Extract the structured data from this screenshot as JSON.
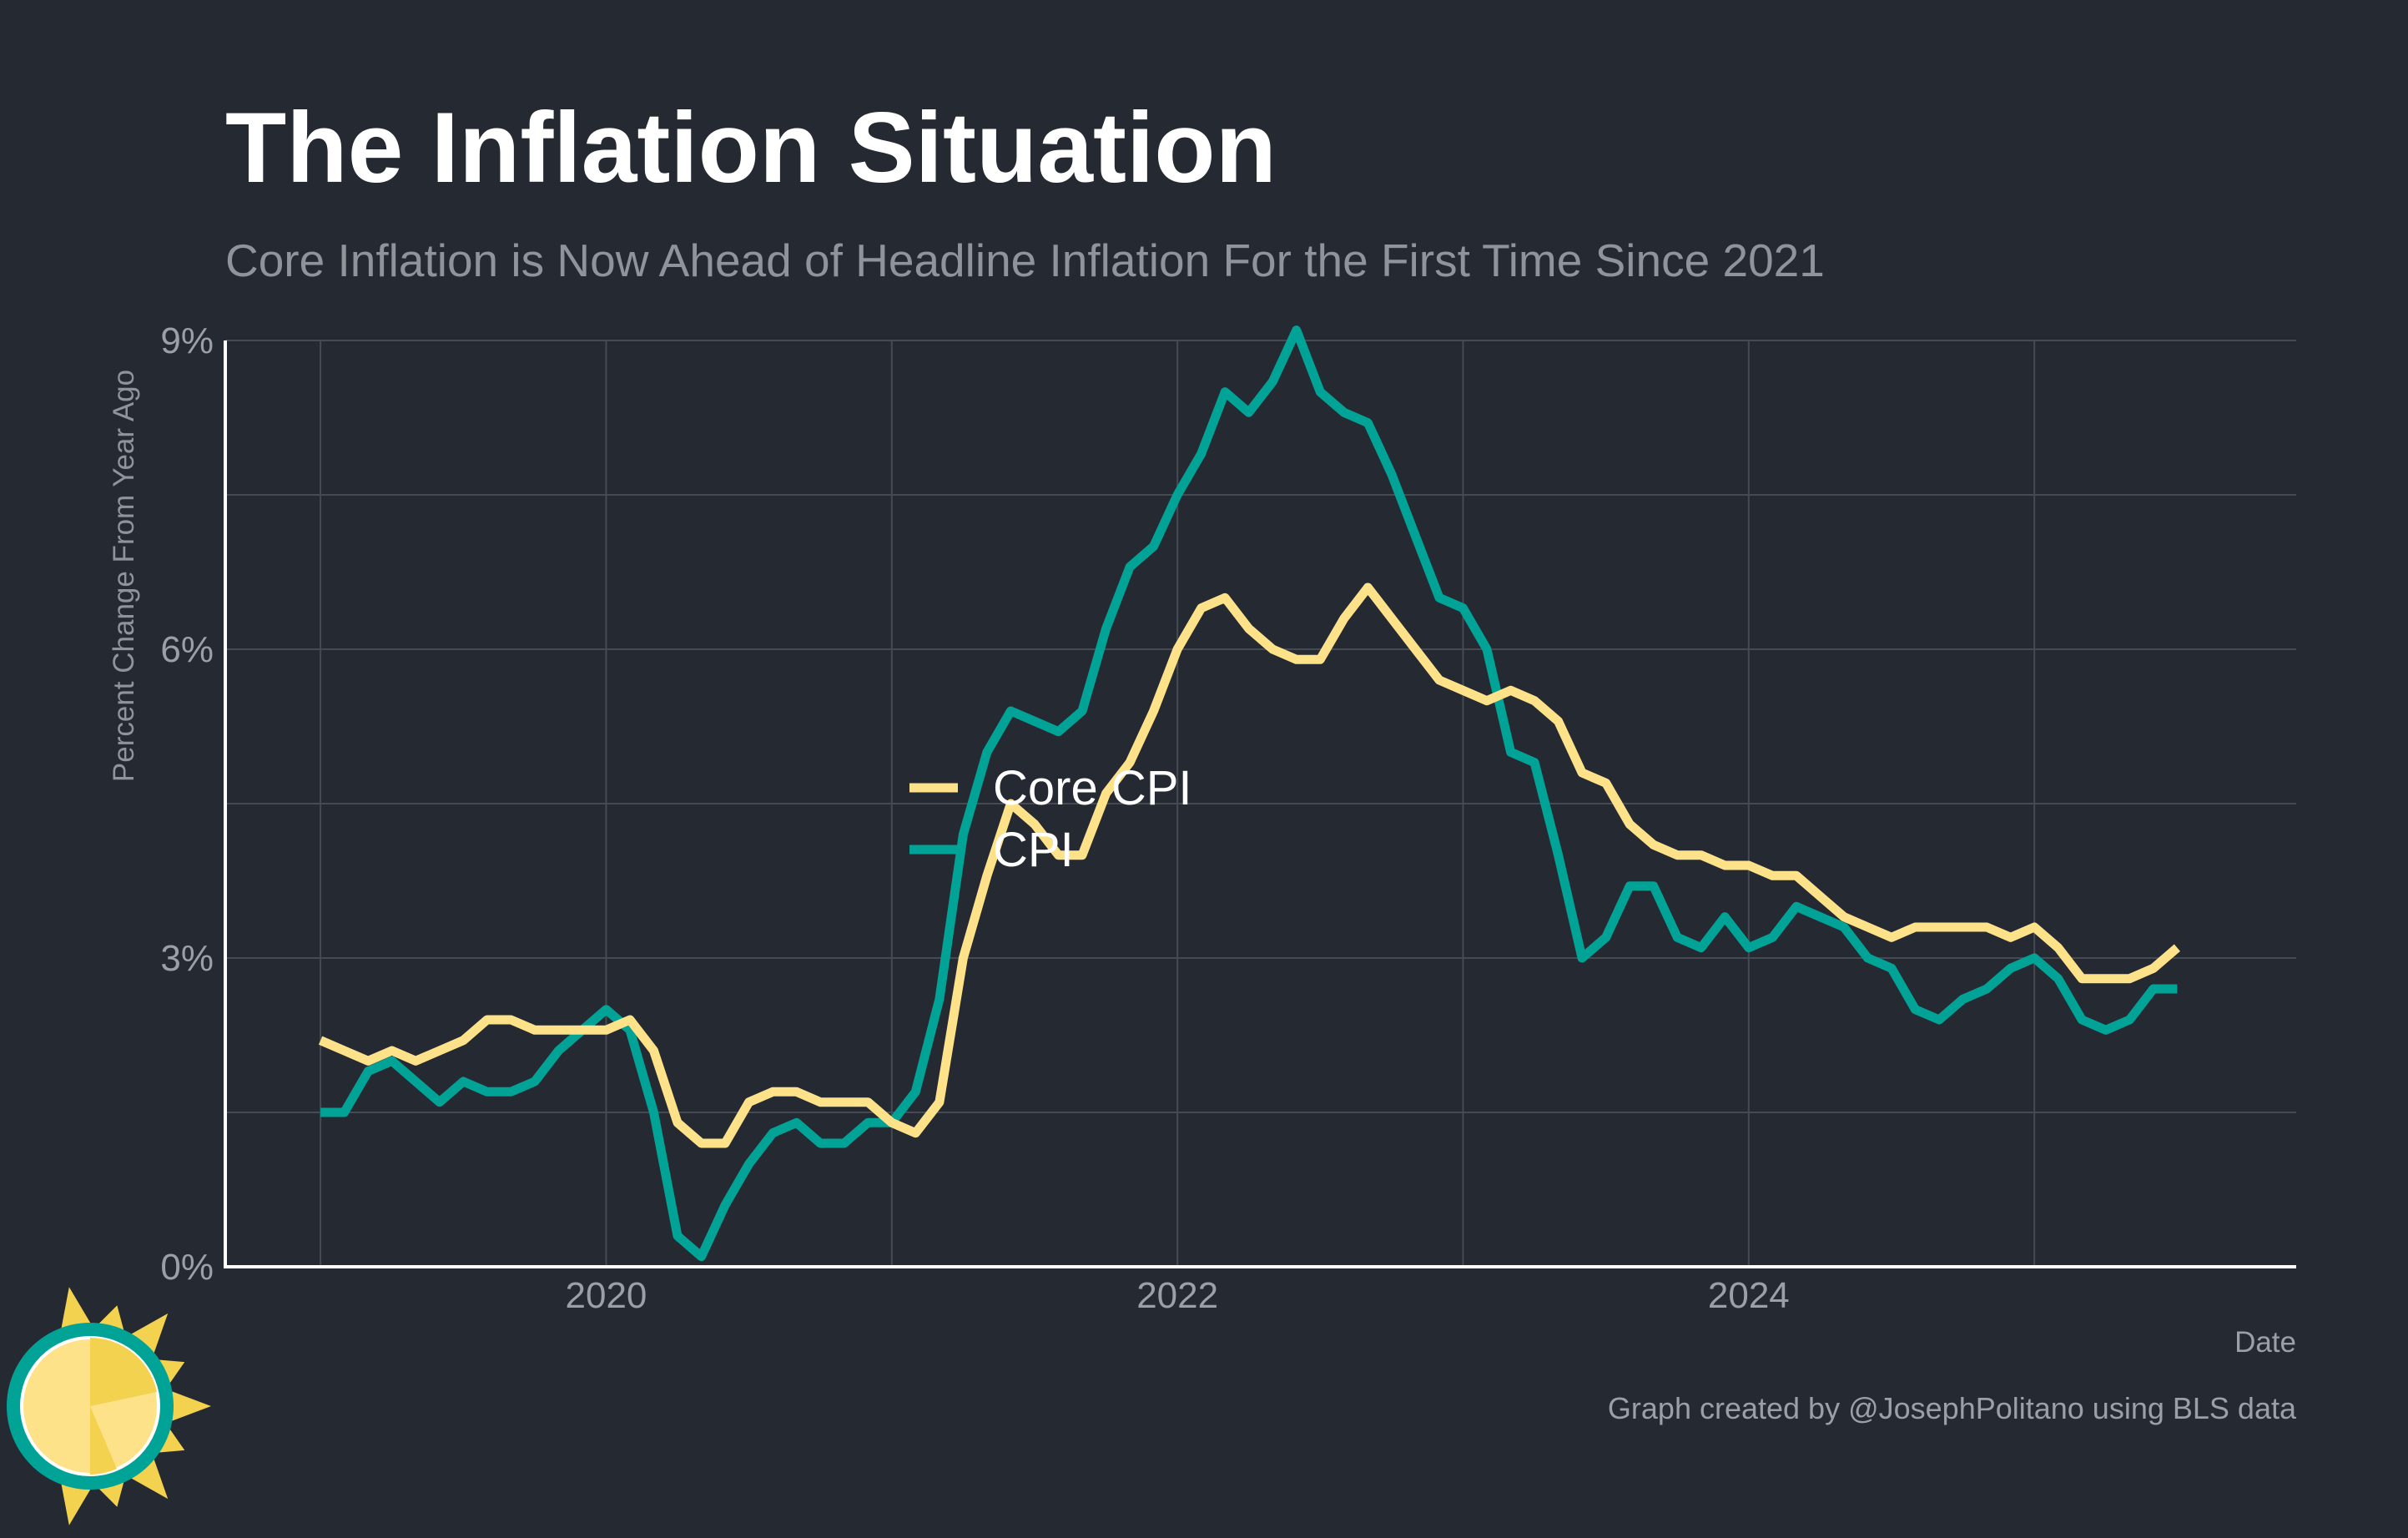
{
  "title": "The Inflation Situation",
  "subtitle": "Core Inflation is Now Ahead of Headline Inflation For the First Time Since 2021",
  "caption": "Graph created by @JosephPolitano using BLS data",
  "logo": {
    "icon": "sun-icon"
  },
  "colors": {
    "background": "#252932",
    "core": "#FDE28A",
    "cpi": "#00A396",
    "grid": "#454a53",
    "axis": "#ffffff"
  },
  "chart_data": {
    "type": "line",
    "xlabel": "Date",
    "ylabel": "Percent Change From Year Ago",
    "xlim": [
      "2018-09",
      "2025-12"
    ],
    "ylim": [
      0,
      9
    ],
    "y_ticks": [
      0,
      3,
      6,
      9
    ],
    "y_tick_labels": [
      "0%",
      "3%",
      "6%",
      "9%"
    ],
    "x_ticks": [
      "2020-01",
      "2022-01",
      "2024-01"
    ],
    "x_tick_labels": [
      "2020",
      "2022",
      "2024"
    ],
    "grid": true,
    "legend_position": "center",
    "series": [
      {
        "name": "Core CPI",
        "color": "#FDE28A",
        "start": "2019-01",
        "values": [
          2.2,
          2.1,
          2.0,
          2.1,
          2.0,
          2.1,
          2.2,
          2.4,
          2.4,
          2.3,
          2.3,
          2.3,
          2.3,
          2.4,
          2.1,
          1.4,
          1.2,
          1.2,
          1.6,
          1.7,
          1.7,
          1.6,
          1.6,
          1.6,
          1.4,
          1.3,
          1.6,
          3.0,
          3.8,
          4.5,
          4.3,
          4.0,
          4.0,
          4.6,
          4.9,
          5.4,
          6.0,
          6.4,
          6.5,
          6.2,
          6.0,
          5.9,
          5.9,
          6.3,
          6.6,
          6.3,
          6.0,
          5.7,
          5.6,
          5.5,
          5.6,
          5.5,
          5.3,
          4.8,
          4.7,
          4.3,
          4.1,
          4.0,
          4.0,
          3.9,
          3.9,
          3.8,
          3.8,
          3.6,
          3.4,
          3.3,
          3.2,
          3.3,
          3.3,
          3.3,
          3.3,
          3.2,
          3.3,
          3.1,
          2.8,
          2.8,
          2.8,
          2.9,
          3.1
        ]
      },
      {
        "name": "CPI",
        "color": "#00A396",
        "start": "2019-01",
        "values": [
          1.5,
          1.5,
          1.9,
          2.0,
          1.8,
          1.6,
          1.8,
          1.7,
          1.7,
          1.8,
          2.1,
          2.3,
          2.5,
          2.3,
          1.5,
          0.3,
          0.1,
          0.6,
          1.0,
          1.3,
          1.4,
          1.2,
          1.2,
          1.4,
          1.4,
          1.7,
          2.6,
          4.2,
          5.0,
          5.4,
          5.3,
          5.2,
          5.4,
          6.2,
          6.8,
          7.0,
          7.5,
          7.9,
          8.5,
          8.3,
          8.6,
          9.1,
          8.5,
          8.3,
          8.2,
          7.7,
          7.1,
          6.5,
          6.4,
          6.0,
          5.0,
          4.9,
          4.0,
          3.0,
          3.2,
          3.7,
          3.7,
          3.2,
          3.1,
          3.4,
          3.1,
          3.2,
          3.5,
          3.4,
          3.3,
          3.0,
          2.9,
          2.5,
          2.4,
          2.6,
          2.7,
          2.9,
          3.0,
          2.8,
          2.4,
          2.3,
          2.4,
          2.7,
          2.7
        ]
      }
    ]
  }
}
